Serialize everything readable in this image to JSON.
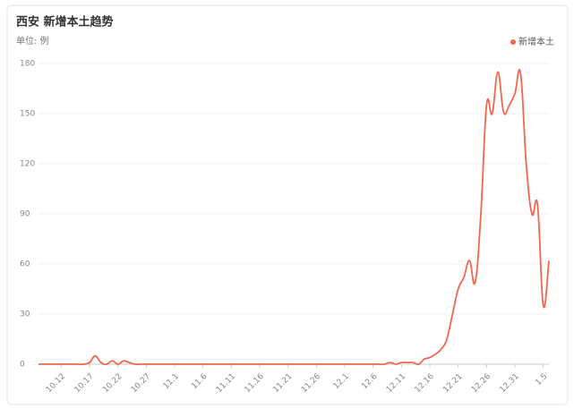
{
  "chart_data": {
    "type": "line",
    "title": "西安 新增本土趋势",
    "subtitle": "单位: 例",
    "categories": [
      null,
      null,
      null,
      null,
      "10.12",
      null,
      null,
      null,
      null,
      "10.17",
      null,
      null,
      null,
      null,
      "10.22",
      null,
      null,
      null,
      null,
      "10.27",
      null,
      null,
      null,
      null,
      "11.1",
      null,
      null,
      null,
      null,
      "11.6",
      null,
      null,
      null,
      null,
      "11.11",
      null,
      null,
      null,
      null,
      "11.16",
      null,
      null,
      null,
      null,
      "11.21",
      null,
      null,
      null,
      null,
      "11.26",
      null,
      null,
      null,
      null,
      "12.1",
      null,
      null,
      null,
      null,
      "12.6",
      null,
      null,
      null,
      null,
      "12.11",
      null,
      null,
      null,
      null,
      "12.16",
      null,
      null,
      null,
      null,
      "12.21",
      null,
      null,
      null,
      null,
      "12.26",
      null,
      null,
      null,
      null,
      "12.31",
      null,
      null,
      null,
      null,
      "1.5",
      null
    ],
    "series": [
      {
        "name": "新增本土",
        "color": "#f2674f",
        "values": [
          0,
          0,
          0,
          0,
          0,
          0,
          0,
          0,
          0,
          1,
          5,
          1,
          0,
          2,
          0,
          2,
          1,
          0,
          0,
          0,
          0,
          0,
          0,
          0,
          0,
          0,
          0,
          0,
          0,
          0,
          0,
          0,
          0,
          0,
          0,
          0,
          0,
          0,
          0,
          0,
          0,
          0,
          0,
          0,
          0,
          0,
          0,
          0,
          0,
          0,
          0,
          0,
          0,
          0,
          0,
          0,
          0,
          0,
          0,
          0,
          0,
          0,
          1,
          0,
          1,
          1,
          1,
          0,
          3,
          4,
          6,
          9,
          15,
          30,
          45,
          52,
          62,
          49,
          90,
          155,
          150,
          175,
          151,
          155,
          162,
          174,
          120,
          90,
          95,
          35,
          62
        ]
      }
    ],
    "ylim": [
      0,
      180
    ],
    "yticks": [
      0,
      30,
      60,
      90,
      120,
      150,
      180
    ],
    "grid": true,
    "legend": "top-right"
  }
}
